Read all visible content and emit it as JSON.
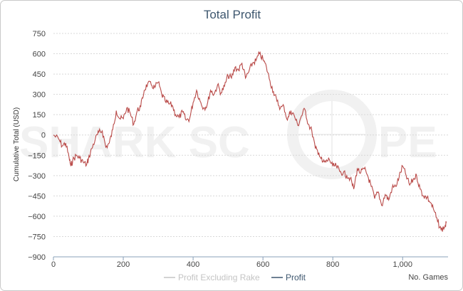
{
  "chart_data": {
    "type": "line",
    "title": "Total Profit",
    "ylabel": "Cumulative Total (USD)",
    "xlabel": "No. Games",
    "xlim": [
      0,
      1130
    ],
    "ylim": [
      -900,
      750
    ],
    "x_ticks": [
      0,
      200,
      400,
      600,
      800,
      1000
    ],
    "x_tick_labels": [
      "0",
      "200",
      "400",
      "600",
      "800",
      "1,000"
    ],
    "y_ticks": [
      750,
      600,
      450,
      300,
      150,
      0,
      -150,
      -300,
      -450,
      -600,
      -750,
      -900
    ],
    "y_tick_labels": [
      "750",
      "600",
      "450",
      "300",
      "150",
      "0",
      "−150",
      "−300",
      "−450",
      "−600",
      "−750",
      "−900"
    ],
    "grid": true,
    "legend_position": "bottom-center",
    "watermark": "SHARK SCOPE",
    "series": [
      {
        "name": "Profit Excluding Rake",
        "visible": false,
        "color": "#c4c4c4",
        "x": [],
        "y": []
      },
      {
        "name": "Profit",
        "visible": true,
        "color": "#b94a48",
        "x": [
          0,
          15,
          25,
          35,
          45,
          50,
          55,
          65,
          75,
          85,
          95,
          100,
          110,
          120,
          130,
          140,
          150,
          160,
          170,
          180,
          190,
          200,
          210,
          220,
          230,
          240,
          250,
          260,
          270,
          280,
          290,
          300,
          310,
          320,
          330,
          340,
          350,
          360,
          370,
          380,
          390,
          400,
          410,
          420,
          430,
          440,
          450,
          460,
          470,
          480,
          490,
          500,
          510,
          520,
          530,
          540,
          550,
          560,
          570,
          580,
          590,
          600,
          610,
          620,
          630,
          640,
          650,
          660,
          670,
          680,
          690,
          700,
          710,
          720,
          730,
          740,
          750,
          760,
          770,
          780,
          790,
          800,
          810,
          820,
          830,
          840,
          850,
          860,
          870,
          880,
          890,
          900,
          910,
          920,
          930,
          940,
          950,
          960,
          970,
          980,
          990,
          1000,
          1010,
          1020,
          1030,
          1040,
          1050,
          1060,
          1070,
          1080,
          1090,
          1100,
          1110,
          1120,
          1125
        ],
        "y": [
          0,
          -30,
          -80,
          -60,
          -170,
          -230,
          -190,
          -150,
          -170,
          -200,
          -220,
          -180,
          -100,
          -30,
          20,
          30,
          -90,
          -60,
          40,
          180,
          120,
          120,
          200,
          160,
          80,
          180,
          210,
          330,
          380,
          370,
          350,
          390,
          300,
          250,
          230,
          220,
          150,
          130,
          170,
          110,
          120,
          240,
          330,
          250,
          200,
          220,
          330,
          300,
          370,
          310,
          360,
          440,
          420,
          500,
          480,
          530,
          420,
          470,
          530,
          550,
          600,
          560,
          500,
          400,
          320,
          250,
          200,
          210,
          110,
          180,
          140,
          70,
          140,
          190,
          80,
          30,
          -100,
          -130,
          -200,
          -200,
          -180,
          -230,
          -230,
          -270,
          -280,
          -300,
          -320,
          -400,
          -250,
          -280,
          -250,
          -300,
          -380,
          -470,
          -420,
          -520,
          -440,
          -480,
          -390,
          -380,
          -310,
          -230,
          -300,
          -370,
          -330,
          -300,
          -400,
          -450,
          -460,
          -500,
          -560,
          -640,
          -700,
          -680,
          -650
        ]
      }
    ]
  },
  "legend": {
    "items": [
      "Profit Excluding Rake",
      "Profit"
    ]
  },
  "colors": {
    "title": "#3e576f",
    "profit": "#b94a48",
    "excluded": "#c4c4c4",
    "grid": "#d8d8d8",
    "watermark": "#f1f1f1"
  }
}
